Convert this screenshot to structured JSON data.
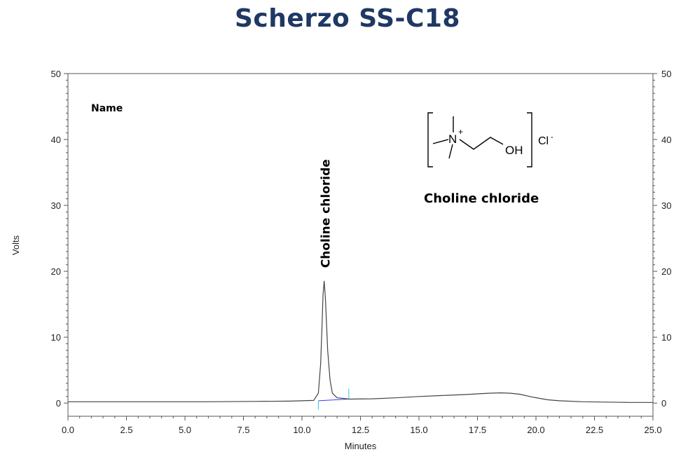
{
  "title": "Scherzo SS-C18",
  "legend_label": "Name",
  "compound_label": "Choline chloride",
  "structure": {
    "n_plus": "N",
    "plus": "+",
    "oh": "OH",
    "cl": "Cl",
    "minus": "-"
  },
  "colors": {
    "title": "#1f3864",
    "trace": "#444444",
    "baseline": "#3a3aff",
    "marker": "#33c6e0"
  },
  "chart_data": {
    "type": "line",
    "xlabel": "Minutes",
    "ylabel": "Volts",
    "xlim": [
      0,
      25
    ],
    "ylim": [
      -2,
      50
    ],
    "x_ticks": [
      "0.0",
      "2.5",
      "5.0",
      "7.5",
      "10.0",
      "12.5",
      "15.0",
      "17.5",
      "20.0",
      "22.5",
      "25.0"
    ],
    "y_ticks": [
      "0",
      "10",
      "20",
      "30",
      "40",
      "50"
    ],
    "series": [
      {
        "x": [
          0,
          2,
          4,
          6,
          8,
          9.5,
          10.5,
          10.7,
          10.8,
          10.85,
          10.9,
          10.95,
          11.0,
          11.05,
          11.1,
          11.2,
          11.3,
          11.5,
          11.8,
          12.0,
          13,
          14,
          15,
          16,
          17,
          17.5,
          18,
          18.5,
          18.9,
          19.3,
          19.8,
          20.5,
          21,
          22,
          23,
          24,
          25
        ],
        "y": [
          0.2,
          0.2,
          0.2,
          0.2,
          0.25,
          0.3,
          0.4,
          1.5,
          6,
          11,
          16.5,
          18.5,
          16,
          12,
          8,
          3.5,
          1.5,
          0.8,
          0.7,
          0.6,
          0.65,
          0.8,
          1.0,
          1.15,
          1.3,
          1.4,
          1.5,
          1.55,
          1.5,
          1.35,
          0.95,
          0.5,
          0.35,
          0.2,
          0.15,
          0.1,
          0.1
        ]
      }
    ],
    "peak_label": {
      "text": "Choline chloride",
      "x": 10.95,
      "y": 18.5
    },
    "integration_baseline": {
      "x": [
        10.7,
        12.0
      ],
      "y": [
        0.35,
        0.6
      ]
    },
    "integration_markers": [
      {
        "x": 10.7,
        "y_from": -1.0,
        "y_to": 0.35
      },
      {
        "x": 12.0,
        "y_from": 0.6,
        "y_to": 2.2
      }
    ]
  }
}
